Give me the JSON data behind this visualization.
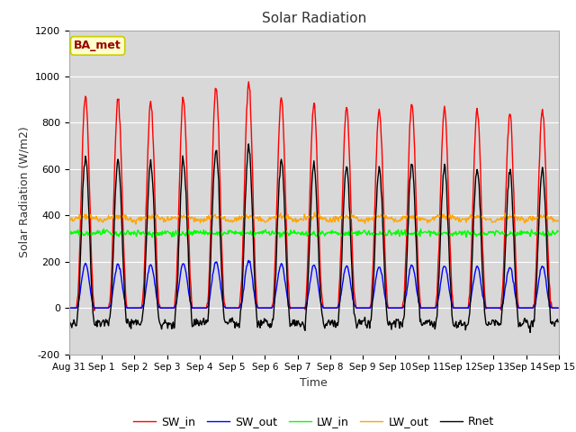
{
  "title": "Solar Radiation",
  "xlabel": "Time",
  "ylabel": "Solar Radiation (W/m2)",
  "ylim": [
    -200,
    1200
  ],
  "fig_bg_color": "#ffffff",
  "plot_bg_color": "#d8d8d8",
  "annotation_text": "BA_met",
  "annotation_bg": "#ffffcc",
  "annotation_border": "#cccc00",
  "annotation_text_color": "#990000",
  "legend_entries": [
    "SW_in",
    "SW_out",
    "LW_in",
    "LW_out",
    "Rnet"
  ],
  "line_colors": [
    "#ff0000",
    "#0000ff",
    "#00ff00",
    "#ffa500",
    "#000000"
  ],
  "line_widths": [
    1.0,
    1.0,
    1.0,
    1.0,
    1.0
  ],
  "n_days": 15,
  "tick_labels": [
    "Aug 31",
    "Sep 1",
    "Sep 2",
    "Sep 3",
    "Sep 4",
    "Sep 5",
    "Sep 6",
    "Sep 7",
    "Sep 8",
    "Sep 9",
    "Sep 10",
    "Sep 11",
    "Sep 12",
    "Sep 13",
    "Sep 14",
    "Sep 15"
  ],
  "yticks": [
    -200,
    0,
    200,
    400,
    600,
    800,
    1000,
    1200
  ],
  "grid_color": "#ffffff",
  "grid_linewidth": 0.8
}
